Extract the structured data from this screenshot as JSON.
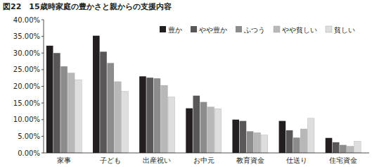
{
  "chart_data": {
    "type": "bar",
    "title": "図22　15歳時家庭の豊かさと親からの支援内容",
    "categories": [
      "家事",
      "子ども",
      "出産祝い",
      "お中元",
      "教育資金",
      "仕送り",
      "住宅資金"
    ],
    "series": [
      {
        "name": "豊か",
        "color": "#231f20",
        "values": [
          32.2,
          35.2,
          23.0,
          13.4,
          10.0,
          9.6,
          4.5
        ]
      },
      {
        "name": "やや豊か",
        "color": "#595757",
        "values": [
          30.0,
          30.4,
          22.6,
          17.2,
          9.6,
          6.8,
          3.2
        ]
      },
      {
        "name": "ふつう",
        "color": "#8c8c8c",
        "values": [
          26.0,
          27.0,
          22.4,
          15.3,
          6.5,
          4.6,
          2.4
        ]
      },
      {
        "name": "やや貧しい",
        "color": "#b8b8b8",
        "values": [
          24.0,
          21.4,
          20.3,
          13.8,
          6.1,
          7.2,
          2.0
        ]
      },
      {
        "name": "貧しい",
        "color": "#dedede",
        "values": [
          22.0,
          18.5,
          16.8,
          13.3,
          5.4,
          10.4,
          3.5
        ]
      }
    ],
    "ylim": [
      0,
      40
    ],
    "yticks": [
      {
        "value": 0,
        "label": "0.00%"
      },
      {
        "value": 5,
        "label": "5.00%"
      },
      {
        "value": 10,
        "label": "10.00%"
      },
      {
        "value": 15,
        "label": "15.00%"
      },
      {
        "value": 20,
        "label": "20.00%"
      },
      {
        "value": 25,
        "label": "25.00%"
      },
      {
        "value": 30,
        "label": "30.00%"
      },
      {
        "value": 35,
        "label": "35.00%"
      },
      {
        "value": 40,
        "label": "40.00%"
      }
    ],
    "grid": false,
    "legend": "upper right"
  }
}
